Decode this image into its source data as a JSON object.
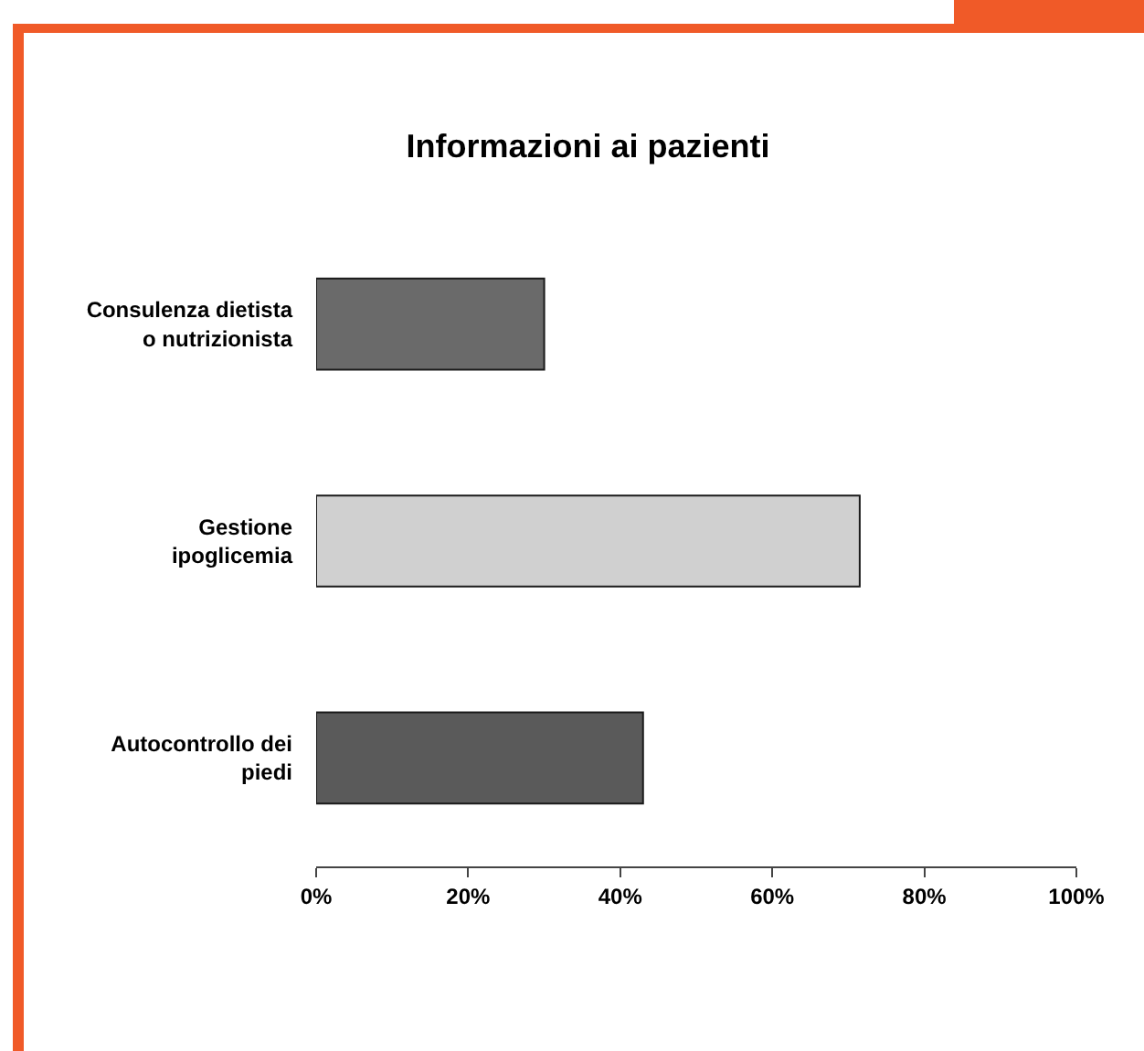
{
  "chart_data": {
    "type": "bar",
    "title": "Informazioni ai pazienti",
    "orientation": "horizontal",
    "categories": [
      "Consulenza dietista o nutrizionista",
      "Gestione ipoglicemia",
      "Autocontrollo dei piedi"
    ],
    "values": [
      30,
      71.5,
      43
    ],
    "colors": [
      "#6a6a6a",
      "#d0d0d0",
      "#5a5a5a"
    ],
    "xlim": [
      0,
      100
    ],
    "xticks": [
      {
        "value": 0,
        "label": "0%"
      },
      {
        "value": 20,
        "label": "20%"
      },
      {
        "value": 40,
        "label": "40%"
      },
      {
        "value": 60,
        "label": "60%"
      },
      {
        "value": 80,
        "label": "80%"
      },
      {
        "value": 100,
        "label": "100%"
      }
    ]
  }
}
